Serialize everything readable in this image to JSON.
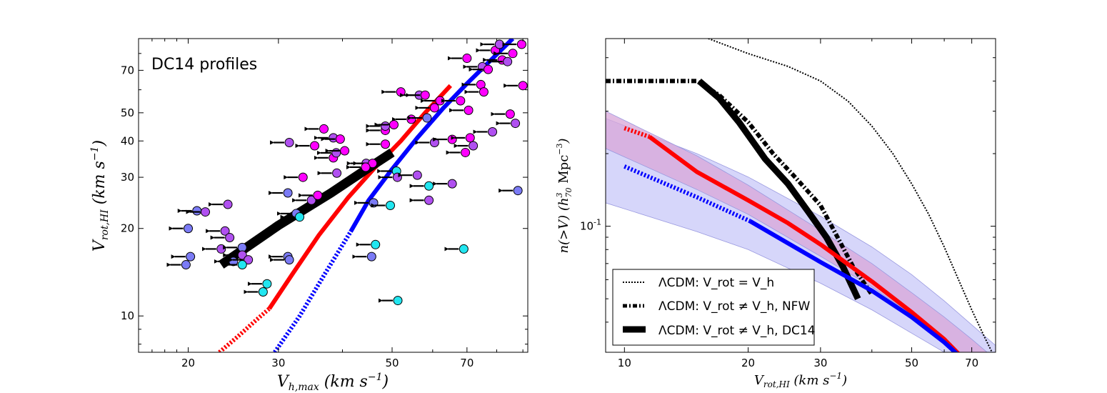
{
  "colors": {
    "red": "#ff0000",
    "blue": "#0000ff",
    "black": "#000000",
    "magenta": "#ff00ff",
    "violet": "#b050f0",
    "periwinkle": "#7b7bf5",
    "cyan": "#22e6f0",
    "band_blue": "#c8c8f8",
    "band_red": "#d8a6d8"
  },
  "chart_data": [
    {
      "type": "scatter",
      "annotation": "DC14 profiles",
      "xlabel": "V_{h,max}  (km s^{-1})",
      "ylabel": "V_{rot,HI}  (km s^{-1})",
      "xscale": "log",
      "yscale": "log",
      "xlim": [
        16,
        92
      ],
      "ylim": [
        7.5,
        90
      ],
      "xticks": [
        20,
        30,
        50,
        70
      ],
      "yticks": [
        10,
        20,
        30,
        40,
        50,
        70
      ],
      "xtick_labels": [
        "20",
        "30",
        "50",
        "70"
      ],
      "ytick_labels": [
        "10",
        "20",
        "30",
        "40",
        "50",
        "70"
      ],
      "lines": [
        {
          "name": "red-dotted",
          "color": "red",
          "style": "dotted",
          "x": [
            23,
            25,
            27,
            28.8
          ],
          "y": [
            7.5,
            8.5,
            9.6,
            10.6
          ]
        },
        {
          "name": "red-solid",
          "color": "red",
          "style": "solid",
          "x": [
            28.8,
            32,
            36,
            41,
            46,
            52,
            58,
            65
          ],
          "y": [
            10.6,
            14,
            19,
            25.5,
            32,
            40,
            50,
            62
          ]
        },
        {
          "name": "blue-dotted",
          "color": "blue",
          "style": "dotted",
          "x": [
            29.5,
            33,
            37,
            41.5
          ],
          "y": [
            7.5,
            10,
            14,
            19.5
          ]
        },
        {
          "name": "blue-solid",
          "color": "blue",
          "style": "solid",
          "x": [
            41.5,
            45,
            50,
            56,
            63,
            70,
            78,
            86
          ],
          "y": [
            19.5,
            25,
            32,
            41,
            52,
            63,
            76,
            90
          ]
        },
        {
          "name": "black-thick",
          "color": "black",
          "style": "solid",
          "x": [
            23.2,
            30,
            38,
            44,
            50
          ],
          "y": [
            15,
            20.5,
            26.5,
            31.5,
            36.5
          ]
        }
      ],
      "points": [
        {
          "x": 19.8,
          "y": 15,
          "c": "periwinkle"
        },
        {
          "x": 20.2,
          "y": 16,
          "c": "periwinkle"
        },
        {
          "x": 20.0,
          "y": 20,
          "c": "periwinkle"
        },
        {
          "x": 20.8,
          "y": 23,
          "c": "periwinkle"
        },
        {
          "x": 21.6,
          "y": 22.8,
          "c": "violet"
        },
        {
          "x": 23.9,
          "y": 24.2,
          "c": "violet"
        },
        {
          "x": 23.6,
          "y": 19.6,
          "c": "violet"
        },
        {
          "x": 24.1,
          "y": 18.6,
          "c": "violet"
        },
        {
          "x": 23.2,
          "y": 17,
          "c": "violet"
        },
        {
          "x": 24.5,
          "y": 15.4,
          "c": "periwinkle"
        },
        {
          "x": 25.5,
          "y": 17.2,
          "c": "periwinkle"
        },
        {
          "x": 25.5,
          "y": 16.2,
          "c": "violet"
        },
        {
          "x": 26.2,
          "y": 15.6,
          "c": "violet"
        },
        {
          "x": 25.5,
          "y": 15,
          "c": "cyan"
        },
        {
          "x": 28.5,
          "y": 12.9,
          "c": "cyan"
        },
        {
          "x": 28.0,
          "y": 12.1,
          "c": "cyan"
        },
        {
          "x": 31.5,
          "y": 39.5,
          "c": "violet"
        },
        {
          "x": 31.3,
          "y": 26.5,
          "c": "periwinkle"
        },
        {
          "x": 31.3,
          "y": 16,
          "c": "periwinkle"
        },
        {
          "x": 31.5,
          "y": 15.6,
          "c": "periwinkle"
        },
        {
          "x": 32.5,
          "y": 22.5,
          "c": "periwinkle"
        },
        {
          "x": 33.0,
          "y": 21.9,
          "c": "cyan"
        },
        {
          "x": 33.5,
          "y": 30,
          "c": "magenta"
        },
        {
          "x": 34.8,
          "y": 25,
          "c": "violet"
        },
        {
          "x": 35.3,
          "y": 38.5,
          "c": "magenta"
        },
        {
          "x": 35.8,
          "y": 26,
          "c": "magenta"
        },
        {
          "x": 36.8,
          "y": 44,
          "c": "magenta"
        },
        {
          "x": 38.4,
          "y": 41,
          "c": "violet"
        },
        {
          "x": 39.6,
          "y": 40.6,
          "c": "magenta"
        },
        {
          "x": 38.4,
          "y": 35,
          "c": "magenta"
        },
        {
          "x": 38.9,
          "y": 36.4,
          "c": "violet"
        },
        {
          "x": 40.4,
          "y": 37,
          "c": "magenta"
        },
        {
          "x": 39.0,
          "y": 31,
          "c": "violet"
        },
        {
          "x": 44.5,
          "y": 33.5,
          "c": "violet"
        },
        {
          "x": 45.8,
          "y": 33.5,
          "c": "magenta"
        },
        {
          "x": 44.4,
          "y": 32.5,
          "c": "magenta"
        },
        {
          "x": 46.0,
          "y": 24.5,
          "c": "periwinkle"
        },
        {
          "x": 46.4,
          "y": 17.6,
          "c": "cyan"
        },
        {
          "x": 45.6,
          "y": 16,
          "c": "periwinkle"
        },
        {
          "x": 48.5,
          "y": 43.5,
          "c": "magenta"
        },
        {
          "x": 48.5,
          "y": 45,
          "c": "violet"
        },
        {
          "x": 50.4,
          "y": 45.5,
          "c": "magenta"
        },
        {
          "x": 48.5,
          "y": 39,
          "c": "magenta"
        },
        {
          "x": 49.6,
          "y": 24,
          "c": "cyan"
        },
        {
          "x": 51.0,
          "y": 31.5,
          "c": "cyan"
        },
        {
          "x": 51.2,
          "y": 30,
          "c": "violet"
        },
        {
          "x": 51.3,
          "y": 11.3,
          "c": "cyan"
        },
        {
          "x": 52.0,
          "y": 59,
          "c": "magenta"
        },
        {
          "x": 54.5,
          "y": 47.5,
          "c": "magenta"
        },
        {
          "x": 56.0,
          "y": 30.5,
          "c": "violet"
        },
        {
          "x": 56.5,
          "y": 57.5,
          "c": "violet"
        },
        {
          "x": 58.0,
          "y": 57.5,
          "c": "magenta"
        },
        {
          "x": 58.5,
          "y": 48,
          "c": "periwinkle"
        },
        {
          "x": 59.0,
          "y": 28,
          "c": "cyan"
        },
        {
          "x": 59.0,
          "y": 25,
          "c": "violet"
        },
        {
          "x": 60.5,
          "y": 52,
          "c": "magenta"
        },
        {
          "x": 62.0,
          "y": 55,
          "c": "magenta"
        },
        {
          "x": 60.5,
          "y": 39.5,
          "c": "violet"
        },
        {
          "x": 65.5,
          "y": 40.5,
          "c": "magenta"
        },
        {
          "x": 65.5,
          "y": 28.5,
          "c": "violet"
        },
        {
          "x": 68.0,
          "y": 55,
          "c": "magenta"
        },
        {
          "x": 69.0,
          "y": 17,
          "c": "cyan"
        },
        {
          "x": 70.0,
          "y": 77,
          "c": "magenta"
        },
        {
          "x": 70.5,
          "y": 51,
          "c": "magenta"
        },
        {
          "x": 69.5,
          "y": 36.5,
          "c": "magenta"
        },
        {
          "x": 71.0,
          "y": 41,
          "c": "magenta"
        },
        {
          "x": 72.0,
          "y": 38.5,
          "c": "violet"
        },
        {
          "x": 74.5,
          "y": 62.5,
          "c": "magenta"
        },
        {
          "x": 75.0,
          "y": 72,
          "c": "violet"
        },
        {
          "x": 75.5,
          "y": 59,
          "c": "magenta"
        },
        {
          "x": 77.0,
          "y": 70.5,
          "c": "magenta"
        },
        {
          "x": 78.5,
          "y": 43,
          "c": "violet"
        },
        {
          "x": 79.5,
          "y": 82,
          "c": "magenta"
        },
        {
          "x": 81.0,
          "y": 86,
          "c": "violet"
        },
        {
          "x": 82.0,
          "y": 76,
          "c": "magenta"
        },
        {
          "x": 84.0,
          "y": 75,
          "c": "violet"
        },
        {
          "x": 85.0,
          "y": 49.5,
          "c": "magenta"
        },
        {
          "x": 86.0,
          "y": 80,
          "c": "magenta"
        },
        {
          "x": 87.0,
          "y": 46,
          "c": "violet"
        },
        {
          "x": 88.0,
          "y": 27,
          "c": "periwinkle"
        },
        {
          "x": 90.0,
          "y": 62,
          "c": "magenta"
        },
        {
          "x": 89.5,
          "y": 86,
          "c": "magenta"
        }
      ]
    },
    {
      "type": "line",
      "xlabel": "V_{rot,HI}  (km s^{-1})",
      "ylabel": "n(>V)   (h_{70}^{3} Mpc^{-3})",
      "xscale": "log",
      "yscale": "log",
      "xlim": [
        9,
        80
      ],
      "ylim": [
        0.03,
        0.6
      ],
      "xticks": [
        10,
        20,
        30,
        50,
        70
      ],
      "xtick_labels": [
        "10",
        "20",
        "30",
        "50",
        "70"
      ],
      "yticks": [
        0.1
      ],
      "ytick_labels": [
        "10^{-1}"
      ],
      "bands": [
        {
          "name": "blue-band",
          "color": "band_blue",
          "x": [
            9,
            15,
            20,
            30,
            40,
            50,
            60,
            70,
            80
          ],
          "lower": [
            0.125,
            0.095,
            0.08,
            0.058,
            0.045,
            0.036,
            0.03,
            0.026,
            0.023
          ],
          "upper": [
            0.28,
            0.2,
            0.16,
            0.11,
            0.082,
            0.063,
            0.049,
            0.039,
            0.032
          ]
        },
        {
          "name": "red-band",
          "color": "band_red",
          "x": [
            9,
            15,
            20,
            30,
            40,
            50,
            60,
            70,
            80
          ],
          "lower": [
            0.21,
            0.142,
            0.112,
            0.075,
            0.056,
            0.043,
            0.034,
            0.027,
            0.022
          ],
          "upper": [
            0.3,
            0.196,
            0.148,
            0.096,
            0.07,
            0.053,
            0.042,
            0.034,
            0.028
          ]
        }
      ],
      "series": [
        {
          "name": "LCDM: Vrot=Vh",
          "color": "black",
          "style": "dotted-thin",
          "x": [
            16,
            20,
            25,
            30,
            35,
            40,
            45,
            50,
            55,
            60,
            65,
            70,
            75,
            80
          ],
          "y": [
            0.6,
            0.52,
            0.46,
            0.4,
            0.33,
            0.26,
            0.2,
            0.15,
            0.112,
            0.082,
            0.06,
            0.045,
            0.035,
            0.028
          ]
        },
        {
          "name": "LCDM: Vrot!=Vh, NFW",
          "color": "black",
          "style": "dashed-thick",
          "x": [
            9,
            15,
            17,
            20,
            23,
            26,
            30,
            33,
            36,
            40
          ],
          "y": [
            0.4,
            0.4,
            0.35,
            0.27,
            0.2,
            0.16,
            0.122,
            0.09,
            0.068,
            0.052
          ]
        },
        {
          "name": "LCDM: Vrot!=Vh, DC14",
          "color": "black",
          "style": "solid-thick",
          "x": [
            15.2,
            17,
            19,
            22,
            25,
            28,
            31,
            34,
            37
          ],
          "y": [
            0.4,
            0.34,
            0.27,
            0.19,
            0.15,
            0.115,
            0.09,
            0.068,
            0.05
          ]
        },
        {
          "name": "red-dotted",
          "color": "red",
          "style": "dotted",
          "x": [
            10,
            11.5
          ],
          "y": [
            0.255,
            0.235
          ]
        },
        {
          "name": "red-solid",
          "color": "red",
          "style": "solid",
          "x": [
            11.5,
            15,
            20,
            25,
            30,
            40,
            50,
            60,
            70
          ],
          "y": [
            0.235,
            0.168,
            0.128,
            0.103,
            0.084,
            0.059,
            0.044,
            0.034,
            0.026
          ]
        },
        {
          "name": "blue-dotted",
          "color": "blue",
          "style": "dotted",
          "x": [
            10,
            15,
            20.2
          ],
          "y": [
            0.177,
            0.132,
            0.105
          ]
        },
        {
          "name": "blue-solid",
          "color": "blue",
          "style": "solid",
          "x": [
            20.2,
            25,
            30,
            40,
            50,
            60,
            70
          ],
          "y": [
            0.105,
            0.085,
            0.071,
            0.054,
            0.042,
            0.033,
            0.026
          ]
        }
      ],
      "legend": [
        {
          "label": "ΛCDM: V_rot = V_h",
          "style": "dotted-thin"
        },
        {
          "label": "ΛCDM: V_rot ≠ V_h, NFW",
          "style": "dashed-thick"
        },
        {
          "label": "ΛCDM: V_rot ≠ V_h, DC14",
          "style": "solid-thick"
        }
      ],
      "legend_pos": "lower-left"
    }
  ]
}
